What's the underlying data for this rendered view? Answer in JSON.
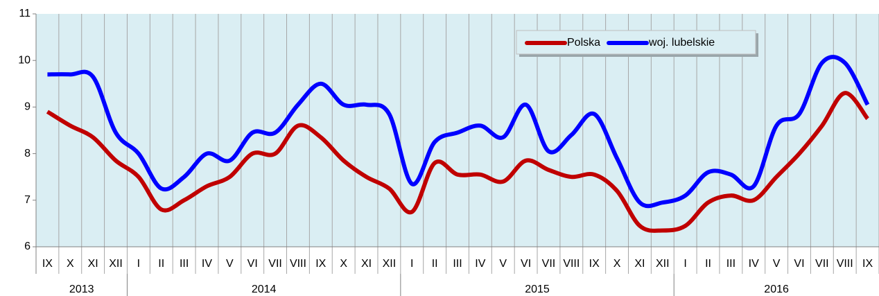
{
  "chart_data": {
    "type": "line",
    "categories": [
      "IX",
      "X",
      "XI",
      "XII",
      "I",
      "II",
      "III",
      "IV",
      "V",
      "VI",
      "VII",
      "VIII",
      "IX",
      "X",
      "XI",
      "XII",
      "I",
      "II",
      "III",
      "IV",
      "V",
      "VI",
      "VII",
      "VIII",
      "IX",
      "X",
      "XI",
      "XII",
      "I",
      "II",
      "III",
      "IV",
      "V",
      "VI",
      "VII",
      "VIII",
      "IX"
    ],
    "years": [
      "2013",
      "2014",
      "2015",
      "2016"
    ],
    "series": [
      {
        "name": "Polska",
        "color": "#c00000",
        "values": [
          8.9,
          8.6,
          8.35,
          7.85,
          7.5,
          6.8,
          7.0,
          7.3,
          7.5,
          8.0,
          8.0,
          8.6,
          8.35,
          7.85,
          7.5,
          7.25,
          6.75,
          7.8,
          7.55,
          7.55,
          7.4,
          7.85,
          7.65,
          7.5,
          7.55,
          7.2,
          6.45,
          6.35,
          6.45,
          6.95,
          7.1,
          7.0,
          7.5,
          8.0,
          8.6,
          9.3,
          8.75
        ]
      },
      {
        "name": "woj. lubelskie",
        "color": "#0000ff",
        "values": [
          9.7,
          9.7,
          9.65,
          8.45,
          8.0,
          7.25,
          7.5,
          8.0,
          7.85,
          8.45,
          8.45,
          9.05,
          9.5,
          9.05,
          9.05,
          8.85,
          7.35,
          8.25,
          8.45,
          8.6,
          8.35,
          9.05,
          8.05,
          8.4,
          8.85,
          7.9,
          6.95,
          6.95,
          7.1,
          7.6,
          7.55,
          7.3,
          8.6,
          8.85,
          9.95,
          9.95,
          9.05
        ]
      }
    ],
    "ylim": [
      6,
      11
    ],
    "yticks": [
      6,
      7,
      8,
      9,
      10,
      11
    ],
    "legend": "top-right"
  }
}
